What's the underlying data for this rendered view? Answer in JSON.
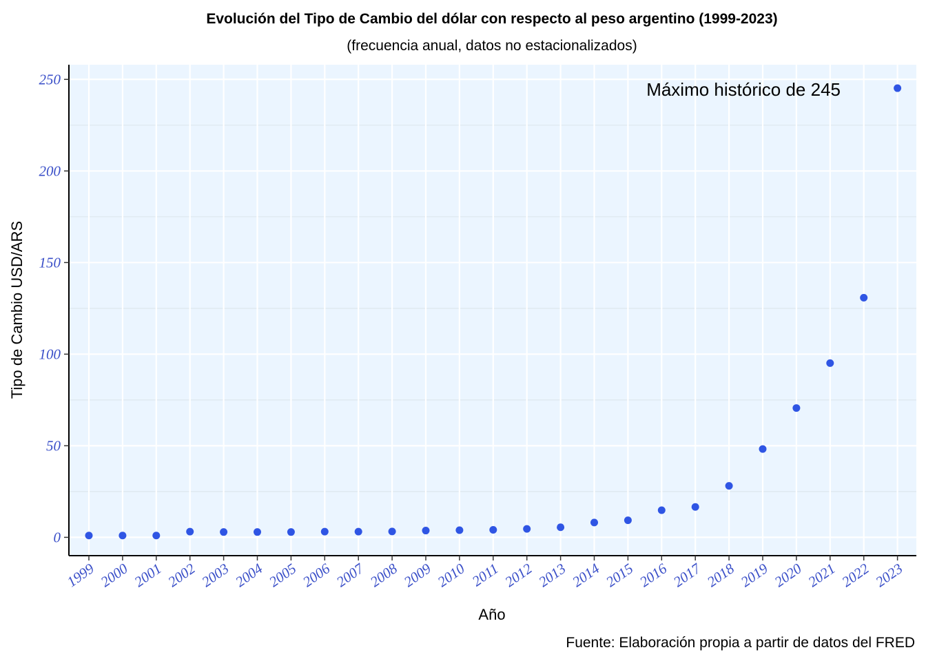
{
  "chart_data": {
    "type": "scatter",
    "title": "Evolución del Tipo de Cambio del dólar con respecto al peso argentino (1999-2023)",
    "subtitle": "(frecuencia anual, datos no estacionalizados)",
    "xlabel": "Año",
    "ylabel": "Tipo de Cambio USD/ARS",
    "caption": "Fuente: Elaboración propia a partir de datos del FRED",
    "annotation": "Máximo histórico de 245",
    "x": [
      "1999",
      "2000",
      "2001",
      "2002",
      "2003",
      "2004",
      "2005",
      "2006",
      "2007",
      "2008",
      "2009",
      "2010",
      "2011",
      "2012",
      "2013",
      "2014",
      "2015",
      "2016",
      "2017",
      "2018",
      "2019",
      "2020",
      "2021",
      "2022",
      "2023"
    ],
    "y": [
      1.0,
      1.0,
      1.0,
      3.1,
      2.9,
      2.9,
      2.9,
      3.1,
      3.1,
      3.2,
      3.7,
      3.9,
      4.1,
      4.6,
      5.5,
      8.1,
      9.3,
      14.8,
      16.6,
      28.1,
      48.2,
      70.6,
      95.1,
      130.8,
      245.2
    ],
    "yticks": [
      0,
      50,
      100,
      150,
      200,
      250
    ],
    "ylim": [
      -10,
      258
    ],
    "grid": true,
    "legend": "none",
    "colors": {
      "point": "#2f55e4",
      "panel_background": "#ebf5ff",
      "grid": "#ffffff",
      "tick_label": "#3a4fc8"
    }
  }
}
